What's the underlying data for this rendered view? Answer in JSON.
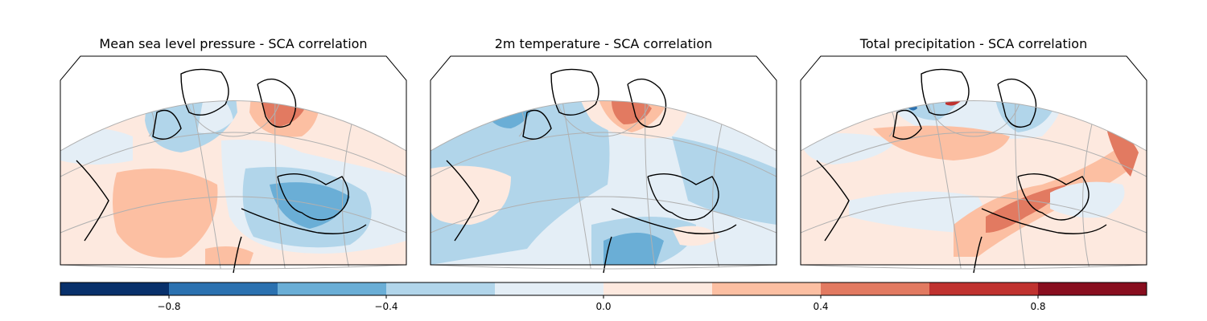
{
  "figure": {
    "panels": [
      {
        "title": "Mean sea level pressure - SCA correlation"
      },
      {
        "title": "2m temperature - SCA correlation"
      },
      {
        "title": "Total precipitation - SCA correlation"
      }
    ]
  },
  "colorbar": {
    "min": -1.0,
    "max": 1.0,
    "levels": [
      -1.0,
      -0.8,
      -0.6,
      -0.4,
      -0.2,
      0.0,
      0.2,
      0.4,
      0.6,
      0.8,
      1.0
    ],
    "colors": [
      "#08306b",
      "#2b71b0",
      "#6aaed6",
      "#b1d5ea",
      "#e4eef6",
      "#fde9df",
      "#fcbfa2",
      "#e27a61",
      "#c0322f",
      "#880d1e"
    ],
    "ticks": [
      {
        "value": -0.8,
        "label": "−0.8"
      },
      {
        "value": -0.4,
        "label": "−0.4"
      },
      {
        "value": 0.0,
        "label": "0.0"
      },
      {
        "value": 0.4,
        "label": "0.4"
      },
      {
        "value": 0.8,
        "label": "0.8"
      }
    ]
  }
}
